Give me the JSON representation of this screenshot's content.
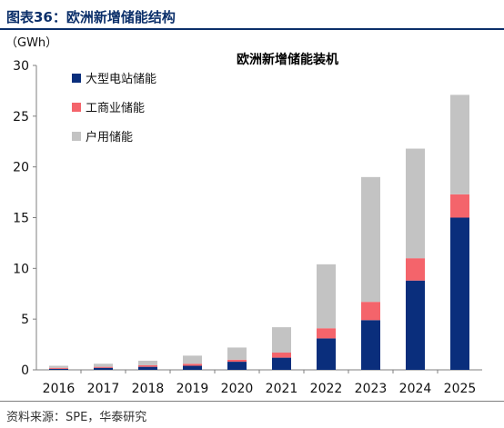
{
  "figure": {
    "label": "图表36：欧洲新增储能结构",
    "source": "资料来源：SPE，华泰研究"
  },
  "chart_data": {
    "type": "bar",
    "stacked": true,
    "title": "欧洲新增储能装机",
    "ylabel": "（GWh）",
    "categories": [
      "2016",
      "2017",
      "2018",
      "2019",
      "2020",
      "2021",
      "2022",
      "2023",
      "2024",
      "2025"
    ],
    "series": [
      {
        "name": "大型电站储能",
        "color": "#0a2e7c",
        "values": [
          0.1,
          0.2,
          0.3,
          0.4,
          0.8,
          1.2,
          3.1,
          4.9,
          8.8,
          15.0
        ]
      },
      {
        "name": "工商业储能",
        "color": "#f4646b",
        "values": [
          0.1,
          0.1,
          0.15,
          0.2,
          0.2,
          0.5,
          1.0,
          1.8,
          2.2,
          2.3
        ]
      },
      {
        "name": "户用储能",
        "color": "#c3c3c3",
        "values": [
          0.2,
          0.3,
          0.45,
          0.8,
          1.2,
          2.5,
          6.3,
          12.3,
          10.8,
          9.8
        ]
      }
    ],
    "ylim": [
      0,
      30
    ],
    "yticks": [
      0,
      5,
      10,
      15,
      20,
      25,
      30
    ],
    "grid": false,
    "legend": "top-left"
  }
}
